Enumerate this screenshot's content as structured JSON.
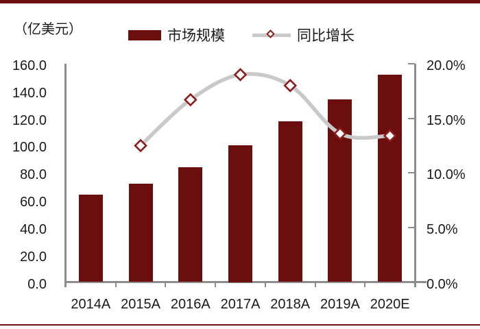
{
  "unit_label": "（亿美元）",
  "colors": {
    "bar": "#6B0E0E",
    "rule": "#6B0E0E",
    "line": "#C9C9C9",
    "marker_stroke": "#8E1B1B",
    "marker_fill": "#FFFFFF",
    "axis": "#8C8C8C",
    "text": "#1A1A1A"
  },
  "chart_data": {
    "type": "bar",
    "combo": "bar+line",
    "title": "",
    "xlabel": "",
    "ylabel_left": "（亿美元）",
    "ylabel_right": "",
    "grid": false,
    "legend_position": "top",
    "categories": [
      "2014A",
      "2015A",
      "2016A",
      "2017A",
      "2018A",
      "2019A",
      "2020E"
    ],
    "series": [
      {
        "name": "市场规模",
        "type": "bar",
        "axis": "left",
        "values": [
          64,
          72,
          84,
          100,
          118,
          134,
          152
        ]
      },
      {
        "name": "同比增长",
        "type": "line",
        "axis": "right",
        "values": [
          null,
          12.5,
          16.7,
          19.0,
          18.0,
          13.6,
          13.4
        ]
      }
    ],
    "left_axis": {
      "min": 0,
      "max": 160,
      "step": 20,
      "tick_labels": [
        "0.0",
        "20.0",
        "40.0",
        "60.0",
        "80.0",
        "100.0",
        "120.0",
        "140.0",
        "160.0"
      ]
    },
    "right_axis": {
      "min": 0,
      "max": 20,
      "step": 5,
      "tick_labels": [
        "0.0%",
        "5.0%",
        "10.0%",
        "15.0%",
        "20.0%"
      ]
    }
  }
}
